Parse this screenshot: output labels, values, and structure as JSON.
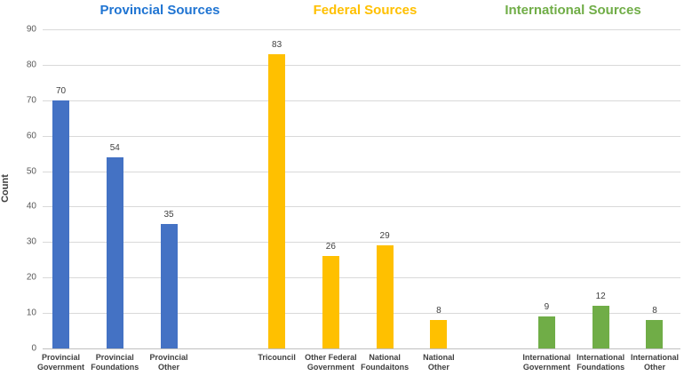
{
  "chart_data": {
    "type": "bar",
    "title": "",
    "xlabel": "",
    "ylabel": "Count",
    "ylim": [
      0,
      90
    ],
    "ytick_step": 10,
    "grid": true,
    "legend": "none",
    "groups": [
      {
        "label": "Provincial Sources",
        "title_color": "#1F74D2",
        "bar_color": "#4472C4",
        "bars": [
          {
            "category": "Provincial Government",
            "category_lines": [
              "Provincial",
              "Government"
            ],
            "value": 70
          },
          {
            "category": "Provincial Foundations",
            "category_lines": [
              "Provincial",
              "Foundations"
            ],
            "value": 54
          },
          {
            "category": "Provincial Other",
            "category_lines": [
              "Provincial",
              "Other"
            ],
            "value": 35
          }
        ]
      },
      {
        "label": "Federal Sources",
        "title_color": "#FFC000",
        "bar_color": "#FFC000",
        "bars": [
          {
            "category": "Tricouncil",
            "category_lines": [
              "Tricouncil"
            ],
            "value": 83
          },
          {
            "category": "Other Federal Government",
            "category_lines": [
              "Other Federal",
              "Government"
            ],
            "value": 26
          },
          {
            "category": "National Foundaitons",
            "category_lines": [
              "National",
              "Foundaitons"
            ],
            "value": 29
          },
          {
            "category": "National Other",
            "category_lines": [
              "National",
              "Other"
            ],
            "value": 8
          }
        ]
      },
      {
        "label": "International Sources",
        "title_color": "#70AD47",
        "bar_color": "#70AD47",
        "bars": [
          {
            "category": "International Government",
            "category_lines": [
              "International",
              "Government"
            ],
            "value": 9
          },
          {
            "category": "International Foundations",
            "category_lines": [
              "International",
              "Foundations"
            ],
            "value": 12
          },
          {
            "category": "International Other",
            "category_lines": [
              "International",
              "Other"
            ],
            "value": 8
          }
        ]
      }
    ],
    "colors": {
      "gridline": "#D9D9D9",
      "axis_line": "#BFBFBF",
      "tick_text": "#595959",
      "value_text": "#404040",
      "category_text": "#404040"
    }
  }
}
